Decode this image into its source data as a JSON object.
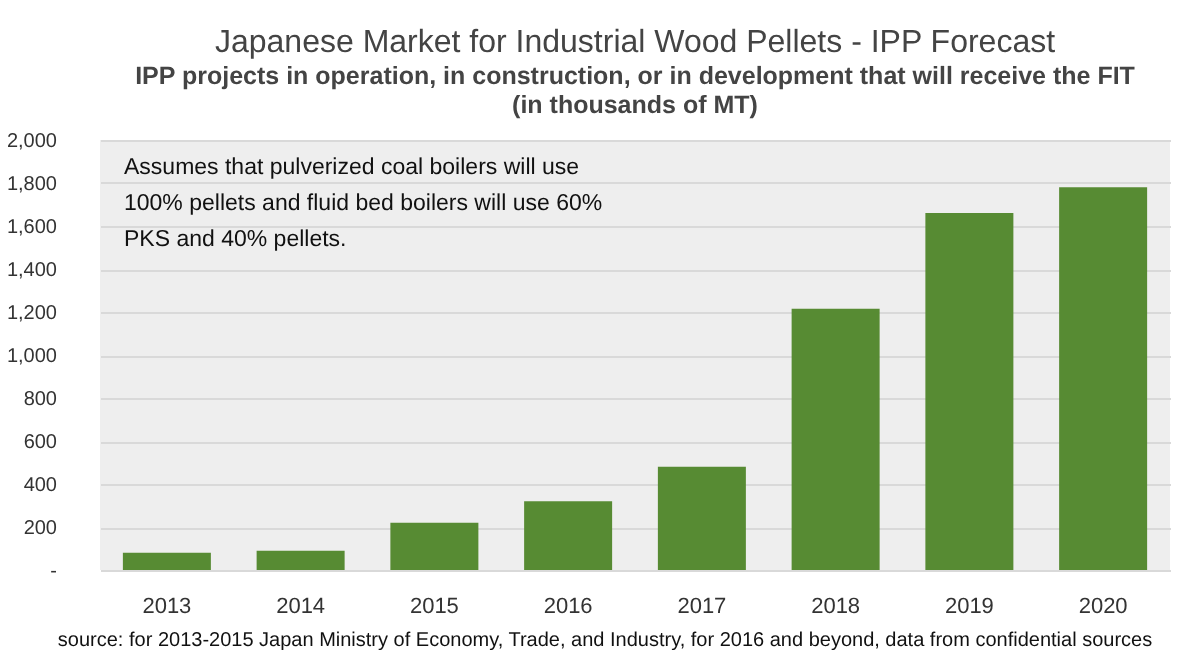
{
  "chart_data": {
    "type": "bar",
    "title": "Japanese Market for Industrial Wood Pellets - IPP Forecast",
    "subtitle": "IPP projects in operation, in construction, or in development that will receive the FIT",
    "ylabel": "(in thousands of MT)",
    "categories": [
      "2013",
      "2014",
      "2015",
      "2016",
      "2017",
      "2018",
      "2019",
      "2020"
    ],
    "values": [
      80,
      90,
      220,
      320,
      480,
      1215,
      1660,
      1780
    ],
    "color": "#578b33",
    "ylim": [
      0,
      2000
    ],
    "yticks": [
      {
        "value": 0,
        "label": "-"
      },
      {
        "value": 200,
        "label": "200"
      },
      {
        "value": 400,
        "label": "400"
      },
      {
        "value": 600,
        "label": "600"
      },
      {
        "value": 800,
        "label": "800"
      },
      {
        "value": 1000,
        "label": "1,000"
      },
      {
        "value": 1200,
        "label": "1,200"
      },
      {
        "value": 1400,
        "label": "1,400"
      },
      {
        "value": 1600,
        "label": "1,600"
      },
      {
        "value": 1800,
        "label": "1,800"
      },
      {
        "value": 2000,
        "label": "2,000"
      }
    ],
    "grid": "y",
    "annotations": [
      "Assumes that pulverized coal boilers will use 100% pellets and fluid bed boilers will use 60% PKS and 40% pellets.",
      "source: for 2013-2015 Japan Ministry of Economy, Trade, and Industry, for 2016 and beyond, data from confidential sources"
    ]
  }
}
